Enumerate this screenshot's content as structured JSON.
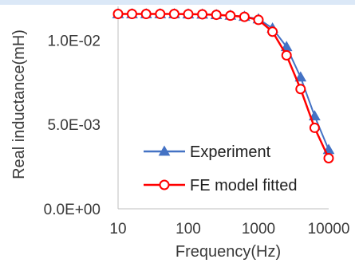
{
  "chart_data": {
    "type": "line",
    "xlabel": "Frequency(Hz)",
    "ylabel": "Real inductance(mH)",
    "x_scale": "log",
    "xlim": [
      10,
      10000
    ],
    "ylim": [
      0,
      0.012
    ],
    "x_tick_labels": [
      "10",
      "100",
      "1000",
      "10000"
    ],
    "x_tick_values": [
      10,
      100,
      1000,
      10000
    ],
    "y_tick_labels": [
      "0.0E+00",
      "5.0E-03",
      "1.0E-02"
    ],
    "y_tick_values": [
      0,
      0.005,
      0.01
    ],
    "grid": false,
    "legend_position": "lower-left inside",
    "x": [
      10,
      15.8,
      25.1,
      39.8,
      63.1,
      100,
      158.5,
      251.2,
      398.1,
      631,
      1000,
      1585,
      2512,
      3981,
      6310,
      10000
    ],
    "series": [
      {
        "name": "Experiment",
        "color": "#4472c4",
        "marker": "triangle",
        "values": [
          0.01155,
          0.01155,
          0.01155,
          0.01155,
          0.01155,
          0.01154,
          0.01153,
          0.0115,
          0.01146,
          0.0114,
          0.01125,
          0.0107,
          0.0096,
          0.0078,
          0.0055,
          0.0035
        ]
      },
      {
        "name": "FE model fitted",
        "color": "#ff0000",
        "marker": "open-circle",
        "values": [
          0.01155,
          0.01155,
          0.01155,
          0.01155,
          0.01155,
          0.01154,
          0.01153,
          0.0115,
          0.01145,
          0.01138,
          0.0112,
          0.0105,
          0.0091,
          0.0071,
          0.0048,
          0.003
        ]
      }
    ]
  }
}
